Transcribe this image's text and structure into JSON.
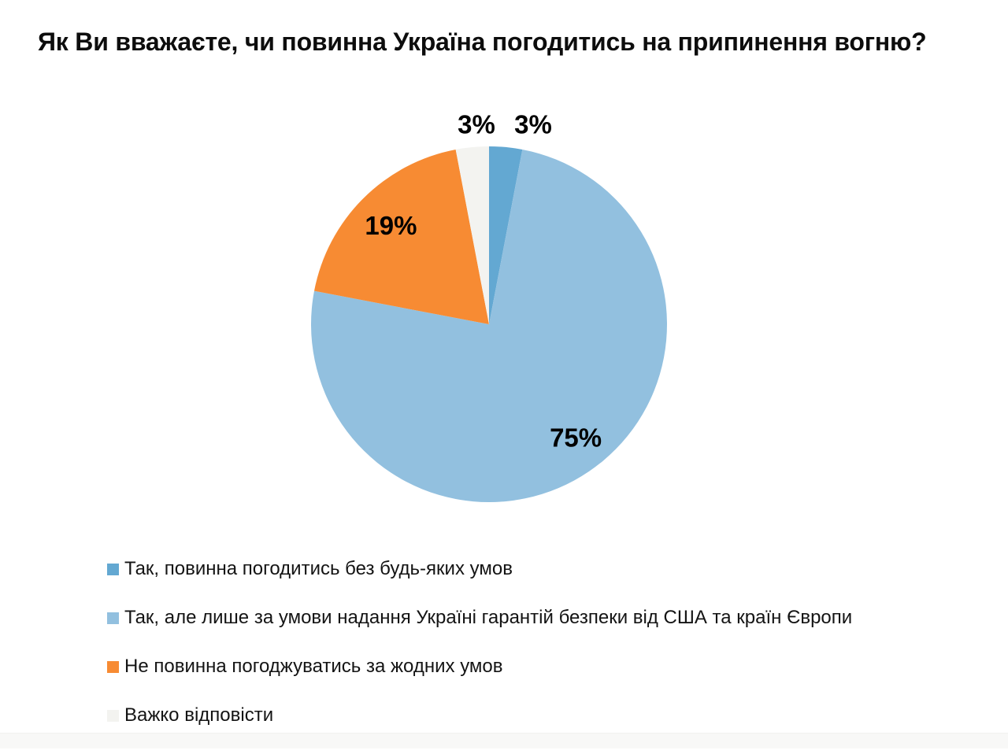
{
  "chart_data": {
    "type": "pie",
    "title": "Як Ви вважаєте, чи повинна Україна погодитись на припинення вогню?",
    "direction": "clockwise",
    "start_angle_deg": 0,
    "legend_position": "bottom-left",
    "data_label_format": "percent",
    "slices": [
      {
        "label": "Так, повинна погодитись без будь-яких умов",
        "value": 3,
        "data_label": "3%",
        "color": "#63a8d2"
      },
      {
        "label": "Так, але лише за умови надання Україні гарантій безпеки від США та країн Європи",
        "value": 75,
        "data_label": "75%",
        "color": "#92c0df"
      },
      {
        "label": "Не повинна погоджуватись за жодних умов",
        "value": 19,
        "data_label": "19%",
        "color": "#f78b33"
      },
      {
        "label": "Важко відповісти",
        "value": 3,
        "data_label": "3%",
        "color": "#f3f3f0"
      }
    ]
  }
}
